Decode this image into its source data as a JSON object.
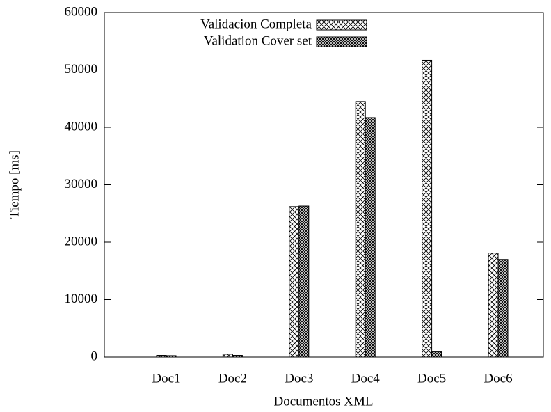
{
  "chart_data": {
    "type": "bar",
    "xlabel": "Documentos XML",
    "ylabel": "Tiempo [ms]",
    "categories": [
      "Doc1",
      "Doc2",
      "Doc3",
      "Doc4",
      "Doc5",
      "Doc6"
    ],
    "series": [
      {
        "name": "Validacion Completa",
        "color": "#000000",
        "values": [
          300,
          500,
          26200,
          44500,
          51700,
          18100
        ]
      },
      {
        "name": "Validation Cover set",
        "color": "#000000",
        "values": [
          250,
          300,
          26300,
          41700,
          900,
          17000
        ]
      }
    ],
    "ylim": [
      0,
      60000
    ],
    "yticks": [
      0,
      10000,
      20000,
      30000,
      40000,
      50000,
      60000
    ],
    "legend": "top"
  }
}
